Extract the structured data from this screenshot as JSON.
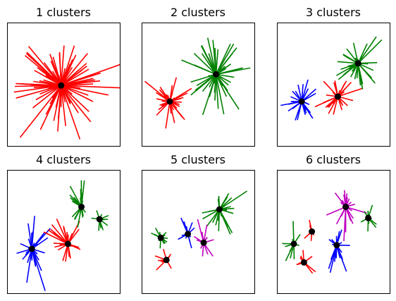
{
  "chart_data": {
    "type": "scatter",
    "description_free": true,
    "colors": {
      "red": "#ff0000",
      "green": "#008000",
      "blue": "#0000ff",
      "magenta": "#bf00bf",
      "center": "#000000"
    },
    "axes": {
      "xlim": [
        0,
        1
      ],
      "ylim": [
        0,
        1
      ],
      "grid": false,
      "ticks": false
    },
    "panels": [
      {
        "title": "1 clusters",
        "clusters": [
          {
            "color": "red",
            "center": [
              0.48,
              0.49
            ],
            "spread": [
              0.4,
              0.34
            ],
            "n": 90,
            "seed": 11
          }
        ]
      },
      {
        "title": "2 clusters",
        "clusters": [
          {
            "color": "red",
            "center": [
              0.25,
              0.36
            ],
            "spread": [
              0.2,
              0.2
            ],
            "n": 40,
            "seed": 21
          },
          {
            "color": "green",
            "center": [
              0.66,
              0.58
            ],
            "spread": [
              0.25,
              0.3
            ],
            "n": 50,
            "seed": 22
          }
        ]
      },
      {
        "title": "3 clusters",
        "clusters": [
          {
            "color": "blue",
            "center": [
              0.22,
              0.36
            ],
            "spread": [
              0.16,
              0.22
            ],
            "n": 30,
            "seed": 31
          },
          {
            "color": "red",
            "center": [
              0.54,
              0.4
            ],
            "spread": [
              0.14,
              0.2
            ],
            "n": 30,
            "seed": 32
          },
          {
            "color": "green",
            "center": [
              0.72,
              0.67
            ],
            "spread": [
              0.18,
              0.22
            ],
            "n": 35,
            "seed": 33
          }
        ]
      },
      {
        "title": "4 clusters",
        "clusters": [
          {
            "color": "blue",
            "center": [
              0.22,
              0.36
            ],
            "spread": [
              0.16,
              0.24
            ],
            "n": 30,
            "seed": 41
          },
          {
            "color": "red",
            "center": [
              0.54,
              0.4
            ],
            "spread": [
              0.16,
              0.22
            ],
            "n": 30,
            "seed": 42
          },
          {
            "color": "green",
            "center": [
              0.66,
              0.7
            ],
            "spread": [
              0.14,
              0.2
            ],
            "n": 25,
            "seed": 43
          },
          {
            "color": "green",
            "center": [
              0.82,
              0.6
            ],
            "spread": [
              0.1,
              0.14
            ],
            "n": 15,
            "seed": 44
          }
        ]
      },
      {
        "title": "5 clusters",
        "clusters": [
          {
            "color": "green",
            "center": [
              0.69,
              0.68
            ],
            "spread": [
              0.18,
              0.22
            ],
            "n": 30,
            "seed": 51
          },
          {
            "color": "blue",
            "center": [
              0.41,
              0.48
            ],
            "spread": [
              0.1,
              0.14
            ],
            "n": 15,
            "seed": 52
          },
          {
            "color": "magenta",
            "center": [
              0.55,
              0.41
            ],
            "spread": [
              0.1,
              0.2
            ],
            "n": 15,
            "seed": 53
          },
          {
            "color": "green",
            "center": [
              0.17,
              0.45
            ],
            "spread": [
              0.12,
              0.12
            ],
            "n": 12,
            "seed": 54
          },
          {
            "color": "red",
            "center": [
              0.22,
              0.27
            ],
            "spread": [
              0.1,
              0.1
            ],
            "n": 12,
            "seed": 55
          }
        ]
      },
      {
        "title": "6 clusters",
        "clusters": [
          {
            "color": "magenta",
            "center": [
              0.61,
              0.7
            ],
            "spread": [
              0.14,
              0.24
            ],
            "n": 25,
            "seed": 61
          },
          {
            "color": "green",
            "center": [
              0.81,
              0.61
            ],
            "spread": [
              0.08,
              0.14
            ],
            "n": 12,
            "seed": 62
          },
          {
            "color": "blue",
            "center": [
              0.53,
              0.39
            ],
            "spread": [
              0.12,
              0.22
            ],
            "n": 25,
            "seed": 63
          },
          {
            "color": "red",
            "center": [
              0.31,
              0.5
            ],
            "spread": [
              0.08,
              0.08
            ],
            "n": 10,
            "seed": 64
          },
          {
            "color": "green",
            "center": [
              0.15,
              0.4
            ],
            "spread": [
              0.1,
              0.16
            ],
            "n": 12,
            "seed": 65
          },
          {
            "color": "red",
            "center": [
              0.24,
              0.25
            ],
            "spread": [
              0.1,
              0.1
            ],
            "n": 10,
            "seed": 66
          }
        ]
      }
    ]
  }
}
